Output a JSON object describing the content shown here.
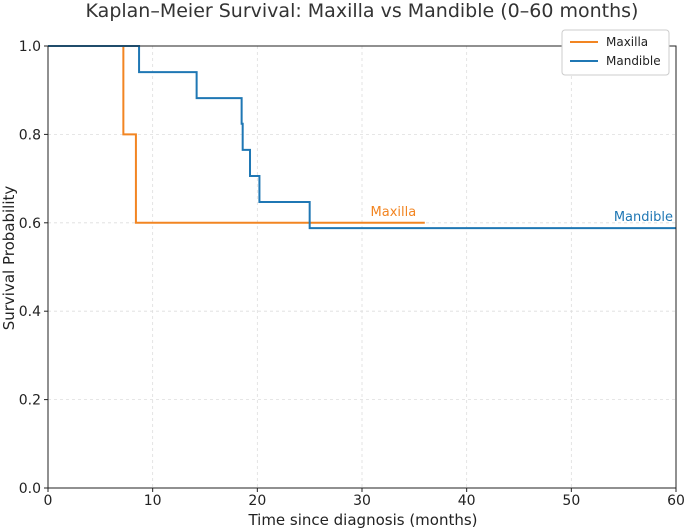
{
  "chart_data": {
    "type": "line",
    "title": "Kaplan–Meier Survival: Maxilla vs Mandible (0–60 months)",
    "xlabel": "Time since diagnosis (months)",
    "ylabel": "Survival Probability",
    "xlim": [
      0,
      60
    ],
    "ylim": [
      0,
      1.0
    ],
    "xticks": [
      0,
      10,
      20,
      30,
      40,
      50,
      60
    ],
    "yticks": [
      0.0,
      0.2,
      0.4,
      0.6,
      0.8,
      1.0
    ],
    "xtick_labels": [
      "0",
      "10",
      "20",
      "30",
      "40",
      "50",
      "60"
    ],
    "ytick_labels": [
      "0.0",
      "0.2",
      "0.4",
      "0.6",
      "0.8",
      "1.0"
    ],
    "grid": true,
    "legend_position": "top-right",
    "series": [
      {
        "name": "Maxilla",
        "color": "#f28522",
        "step": true,
        "x": [
          0,
          7.2,
          8.4,
          36
        ],
        "y": [
          1.0,
          0.8,
          0.6,
          0.6
        ],
        "annotation": {
          "text": "Maxilla",
          "x": 33,
          "y": 0.6
        }
      },
      {
        "name": "Mandible",
        "color": "#1f77b4",
        "step": true,
        "x": [
          0,
          8.7,
          14.2,
          18.5,
          18.6,
          19.3,
          20.2,
          25.0,
          60
        ],
        "y": [
          1.0,
          0.941,
          0.882,
          0.824,
          0.765,
          0.706,
          0.647,
          0.588,
          0.588
        ],
        "annotation": {
          "text": "Mandible",
          "x": 60,
          "y": 0.588
        }
      }
    ]
  }
}
